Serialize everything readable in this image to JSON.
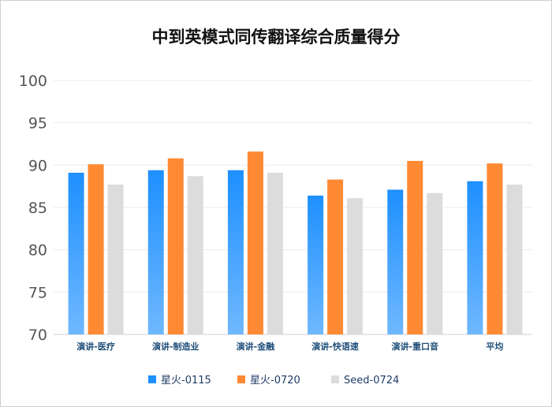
{
  "chart_data": {
    "type": "bar",
    "title": "中到英模式同传翻译综合质量得分",
    "xlabel": "",
    "ylabel": "",
    "ylim": [
      70,
      100
    ],
    "yticks": [
      70,
      75,
      80,
      85,
      90,
      95,
      100
    ],
    "categories": [
      "演讲-医疗",
      "演讲-制造业",
      "演讲-金融",
      "演讲-快语速",
      "演讲-重口音",
      "平均"
    ],
    "series": [
      {
        "name": "星火-0115",
        "color": "#1e90ff",
        "color_light": "#6fb8ff",
        "values": [
          89.1,
          89.4,
          89.4,
          86.4,
          87.1,
          88.1
        ]
      },
      {
        "name": "星火-0720",
        "color": "#ff8a33",
        "color_light": "#ff8a33",
        "values": [
          90.1,
          90.8,
          91.6,
          88.3,
          90.5,
          90.2
        ]
      },
      {
        "name": "Seed-0724",
        "color": "#dcdcdc",
        "color_light": "#dcdcdc",
        "values": [
          87.7,
          88.7,
          89.1,
          86.1,
          86.7,
          87.7
        ]
      }
    ],
    "legend_position": "bottom",
    "grid": true
  }
}
